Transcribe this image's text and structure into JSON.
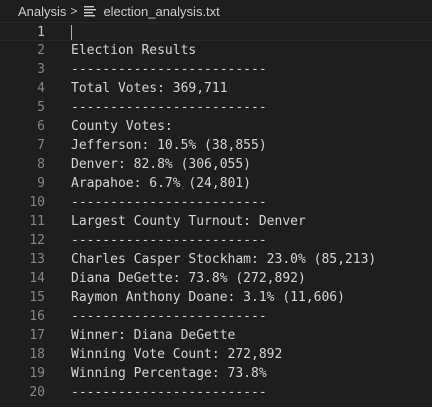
{
  "breadcrumb": {
    "folder": "Analysis",
    "separator": ">",
    "file": "election_analysis.txt"
  },
  "editor": {
    "current_line": 1,
    "lines": [
      {
        "n": "1",
        "text": ""
      },
      {
        "n": "2",
        "text": "Election Results"
      },
      {
        "n": "3",
        "text": "-------------------------"
      },
      {
        "n": "4",
        "text": "Total Votes: 369,711"
      },
      {
        "n": "5",
        "text": "-------------------------"
      },
      {
        "n": "6",
        "text": "County Votes:"
      },
      {
        "n": "7",
        "text": "Jefferson: 10.5% (38,855)"
      },
      {
        "n": "8",
        "text": "Denver: 82.8% (306,055)"
      },
      {
        "n": "9",
        "text": "Arapahoe: 6.7% (24,801)"
      },
      {
        "n": "10",
        "text": "-------------------------"
      },
      {
        "n": "11",
        "text": "Largest County Turnout: Denver"
      },
      {
        "n": "12",
        "text": "-------------------------"
      },
      {
        "n": "13",
        "text": "Charles Casper Stockham: 23.0% (85,213)"
      },
      {
        "n": "14",
        "text": "Diana DeGette: 73.8% (272,892)"
      },
      {
        "n": "15",
        "text": "Raymon Anthony Doane: 3.1% (11,606)"
      },
      {
        "n": "16",
        "text": "-------------------------"
      },
      {
        "n": "17",
        "text": "Winner: Diana DeGette"
      },
      {
        "n": "18",
        "text": "Winning Vote Count: 272,892"
      },
      {
        "n": "19",
        "text": "Winning Percentage: 73.8%"
      },
      {
        "n": "20",
        "text": "-------------------------"
      }
    ]
  }
}
